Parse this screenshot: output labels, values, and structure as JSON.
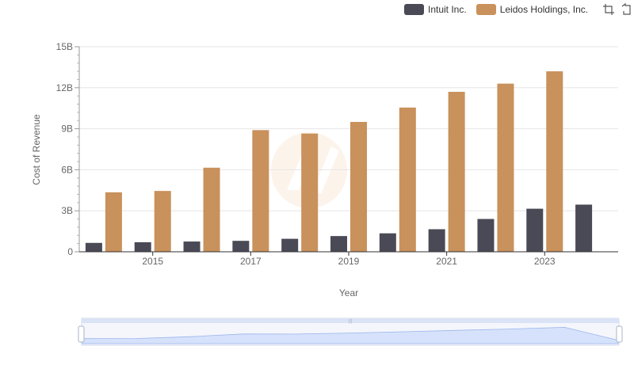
{
  "legend": {
    "items": [
      {
        "label": "Intuit Inc.",
        "color": "#4a4a57"
      },
      {
        "label": "Leidos Holdings, Inc.",
        "color": "#c9915b"
      }
    ]
  },
  "toolbox": {
    "icons": [
      "zoom-icon",
      "restore-icon"
    ]
  },
  "chart_data": {
    "type": "bar",
    "xlabel": "Year",
    "ylabel": "Cost of Revenue",
    "ylim": [
      0,
      15000000000
    ],
    "yticks": [
      "0",
      "3B",
      "6B",
      "9B",
      "12B",
      "15B"
    ],
    "xtick_labels": [
      "2015",
      "2017",
      "2019",
      "2021",
      "2023"
    ],
    "categories": [
      "2014",
      "2015",
      "2016",
      "2017",
      "2018",
      "2019",
      "2020",
      "2021",
      "2022",
      "2023",
      "2024"
    ],
    "series": [
      {
        "name": "Intuit Inc.",
        "color": "#4a4a57",
        "values": [
          650000000,
          700000000,
          750000000,
          800000000,
          950000000,
          1150000000,
          1350000000,
          1650000000,
          2400000000,
          3150000000,
          3450000000
        ]
      },
      {
        "name": "Leidos Holdings, Inc.",
        "color": "#c9915b",
        "values": [
          4350000000,
          4450000000,
          6150000000,
          8900000000,
          8650000000,
          9500000000,
          10550000000,
          11700000000,
          12300000000,
          13200000000,
          null
        ]
      }
    ],
    "grid": true,
    "legend_position": "top-right"
  }
}
